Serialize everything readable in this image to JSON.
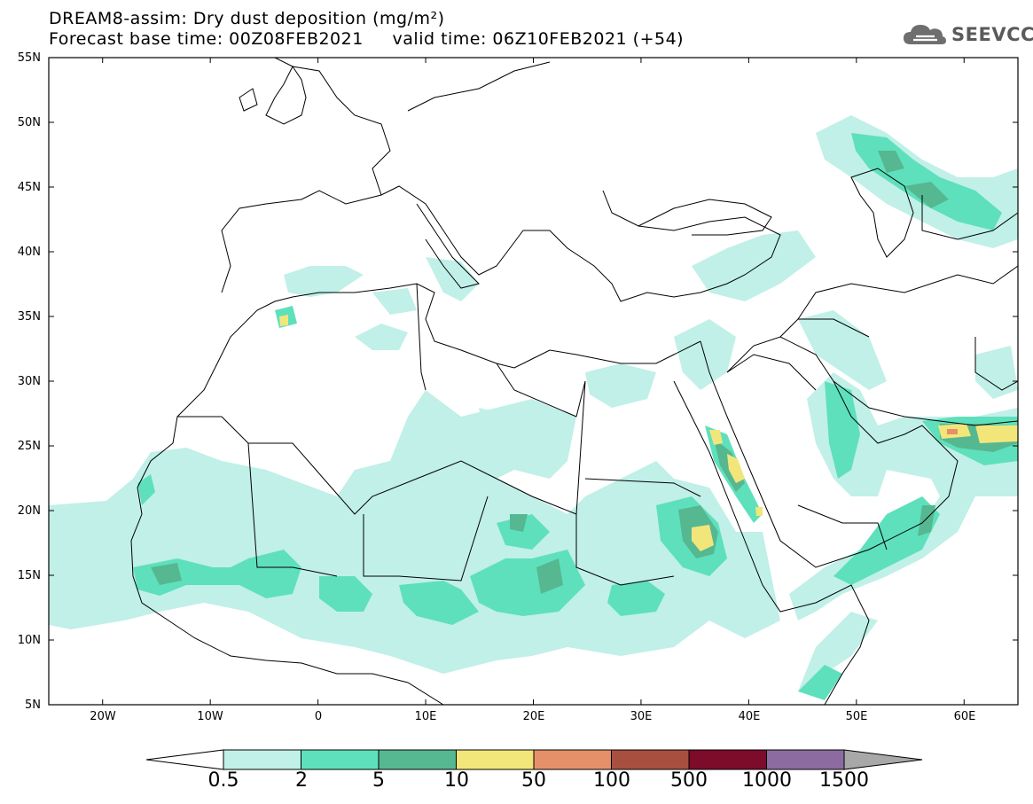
{
  "title": {
    "line1": "DREAM8-assim: Dry dust deposition (mg/m²)",
    "line2": "Forecast base time: 00Z08FEB2021     valid time: 06Z10FEB2021 (+54)"
  },
  "logo": {
    "text": "SEEVCCC",
    "icon": "cloud-icon"
  },
  "map": {
    "lat_labels": [
      "55N",
      "50N",
      "45N",
      "40N",
      "35N",
      "30N",
      "25N",
      "20N",
      "15N",
      "10N",
      "5N"
    ],
    "lon_labels": [
      "20W",
      "10W",
      "0",
      "10E",
      "20E",
      "30E",
      "40E",
      "50E",
      "60E"
    ],
    "lat_range": [
      5,
      55
    ],
    "lon_range": [
      -25,
      65
    ]
  },
  "colorbar": {
    "labels": [
      "0.5",
      "2",
      "5",
      "10",
      "50",
      "100",
      "500",
      "1000",
      "1500"
    ],
    "colors": [
      "#c0f0e8",
      "#5ee0bc",
      "#56b890",
      "#f2e67a",
      "#e6906a",
      "#a8503f",
      "#7c0c2a",
      "#8c6ba0",
      "#a8a8a8"
    ]
  },
  "colors": {
    "light": "#c0f0e8",
    "medium": "#5ee0bc",
    "dark": "#56b890",
    "yellow": "#f2e67a",
    "orange": "#e6906a"
  }
}
